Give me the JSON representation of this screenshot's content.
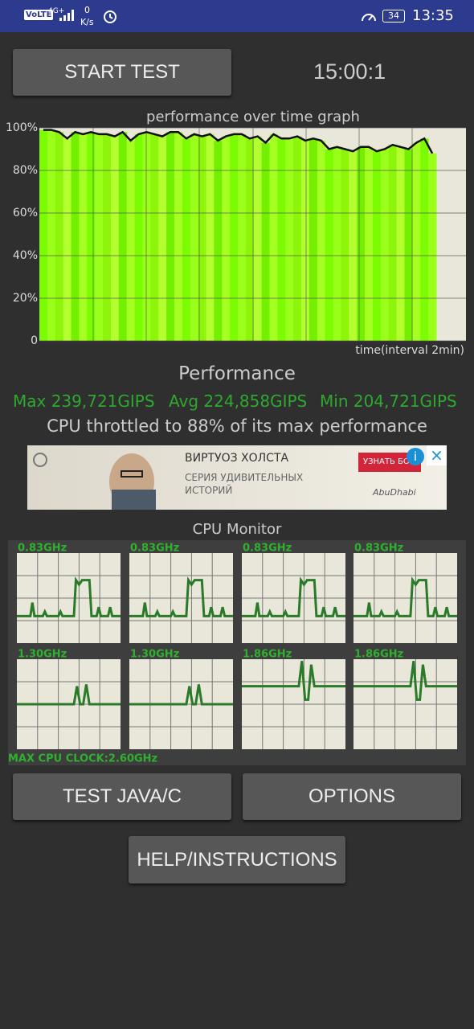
{
  "status_bar": {
    "network": "VoLTE",
    "signal": "4G+",
    "speed": "0",
    "speed_unit": "K/s",
    "battery": "34",
    "time": "13:35"
  },
  "start_button": "START TEST",
  "timer": "15:00:1",
  "graph": {
    "title": "performance over time graph",
    "x_label": "time(interval 2min)",
    "ylim": [
      0,
      100
    ],
    "yticks": [
      0,
      {
        "value": 20,
        "label": "20%"
      },
      {
        "value": 40,
        "label": "40%"
      },
      {
        "value": 60,
        "label": "60%"
      },
      {
        "value": 80,
        "label": "80%"
      },
      {
        "value": 100,
        "label": "100%"
      }
    ],
    "values": [
      99,
      99,
      98,
      95,
      98,
      97,
      98,
      97,
      97,
      96,
      98,
      94,
      97,
      98,
      97,
      96,
      98,
      98,
      95,
      97,
      96,
      97,
      94,
      96,
      97,
      97,
      95,
      96,
      93,
      97,
      95,
      95,
      96,
      94,
      95,
      94,
      90,
      91,
      90,
      89,
      91,
      91,
      89,
      90,
      92,
      91,
      90,
      93,
      95,
      88
    ]
  },
  "performance": {
    "heading": "Performance",
    "max": "Max 239,721GIPS",
    "avg": "Avg 224,858GIPS",
    "min": "Min 204,721GIPS",
    "throttle": "CPU throttled to 88% of its max performance"
  },
  "ad": {
    "title": "ВИРТУОЗ ХОЛСТА",
    "subtitle_1": "СЕРИЯ УДИВИТЕЛЬНЫХ",
    "subtitle_2": "ИСТОРИЙ",
    "cta": "УЗНАТЬ БО",
    "brand": "AbuDhabi"
  },
  "cpu_monitor": {
    "title": "CPU Monitor",
    "cores": [
      "0.83GHz",
      "0.83GHz",
      "0.83GHz",
      "0.83GHz",
      "1.30GHz",
      "1.30GHz",
      "1.86GHz",
      "1.86GHz"
    ],
    "max_clock": "MAX CPU CLOCK:2.60GHz"
  },
  "buttons": {
    "test_java": "TEST JAVA/C",
    "options": "OPTIONS",
    "help": "HELP/INSTRUCTIONS"
  }
}
